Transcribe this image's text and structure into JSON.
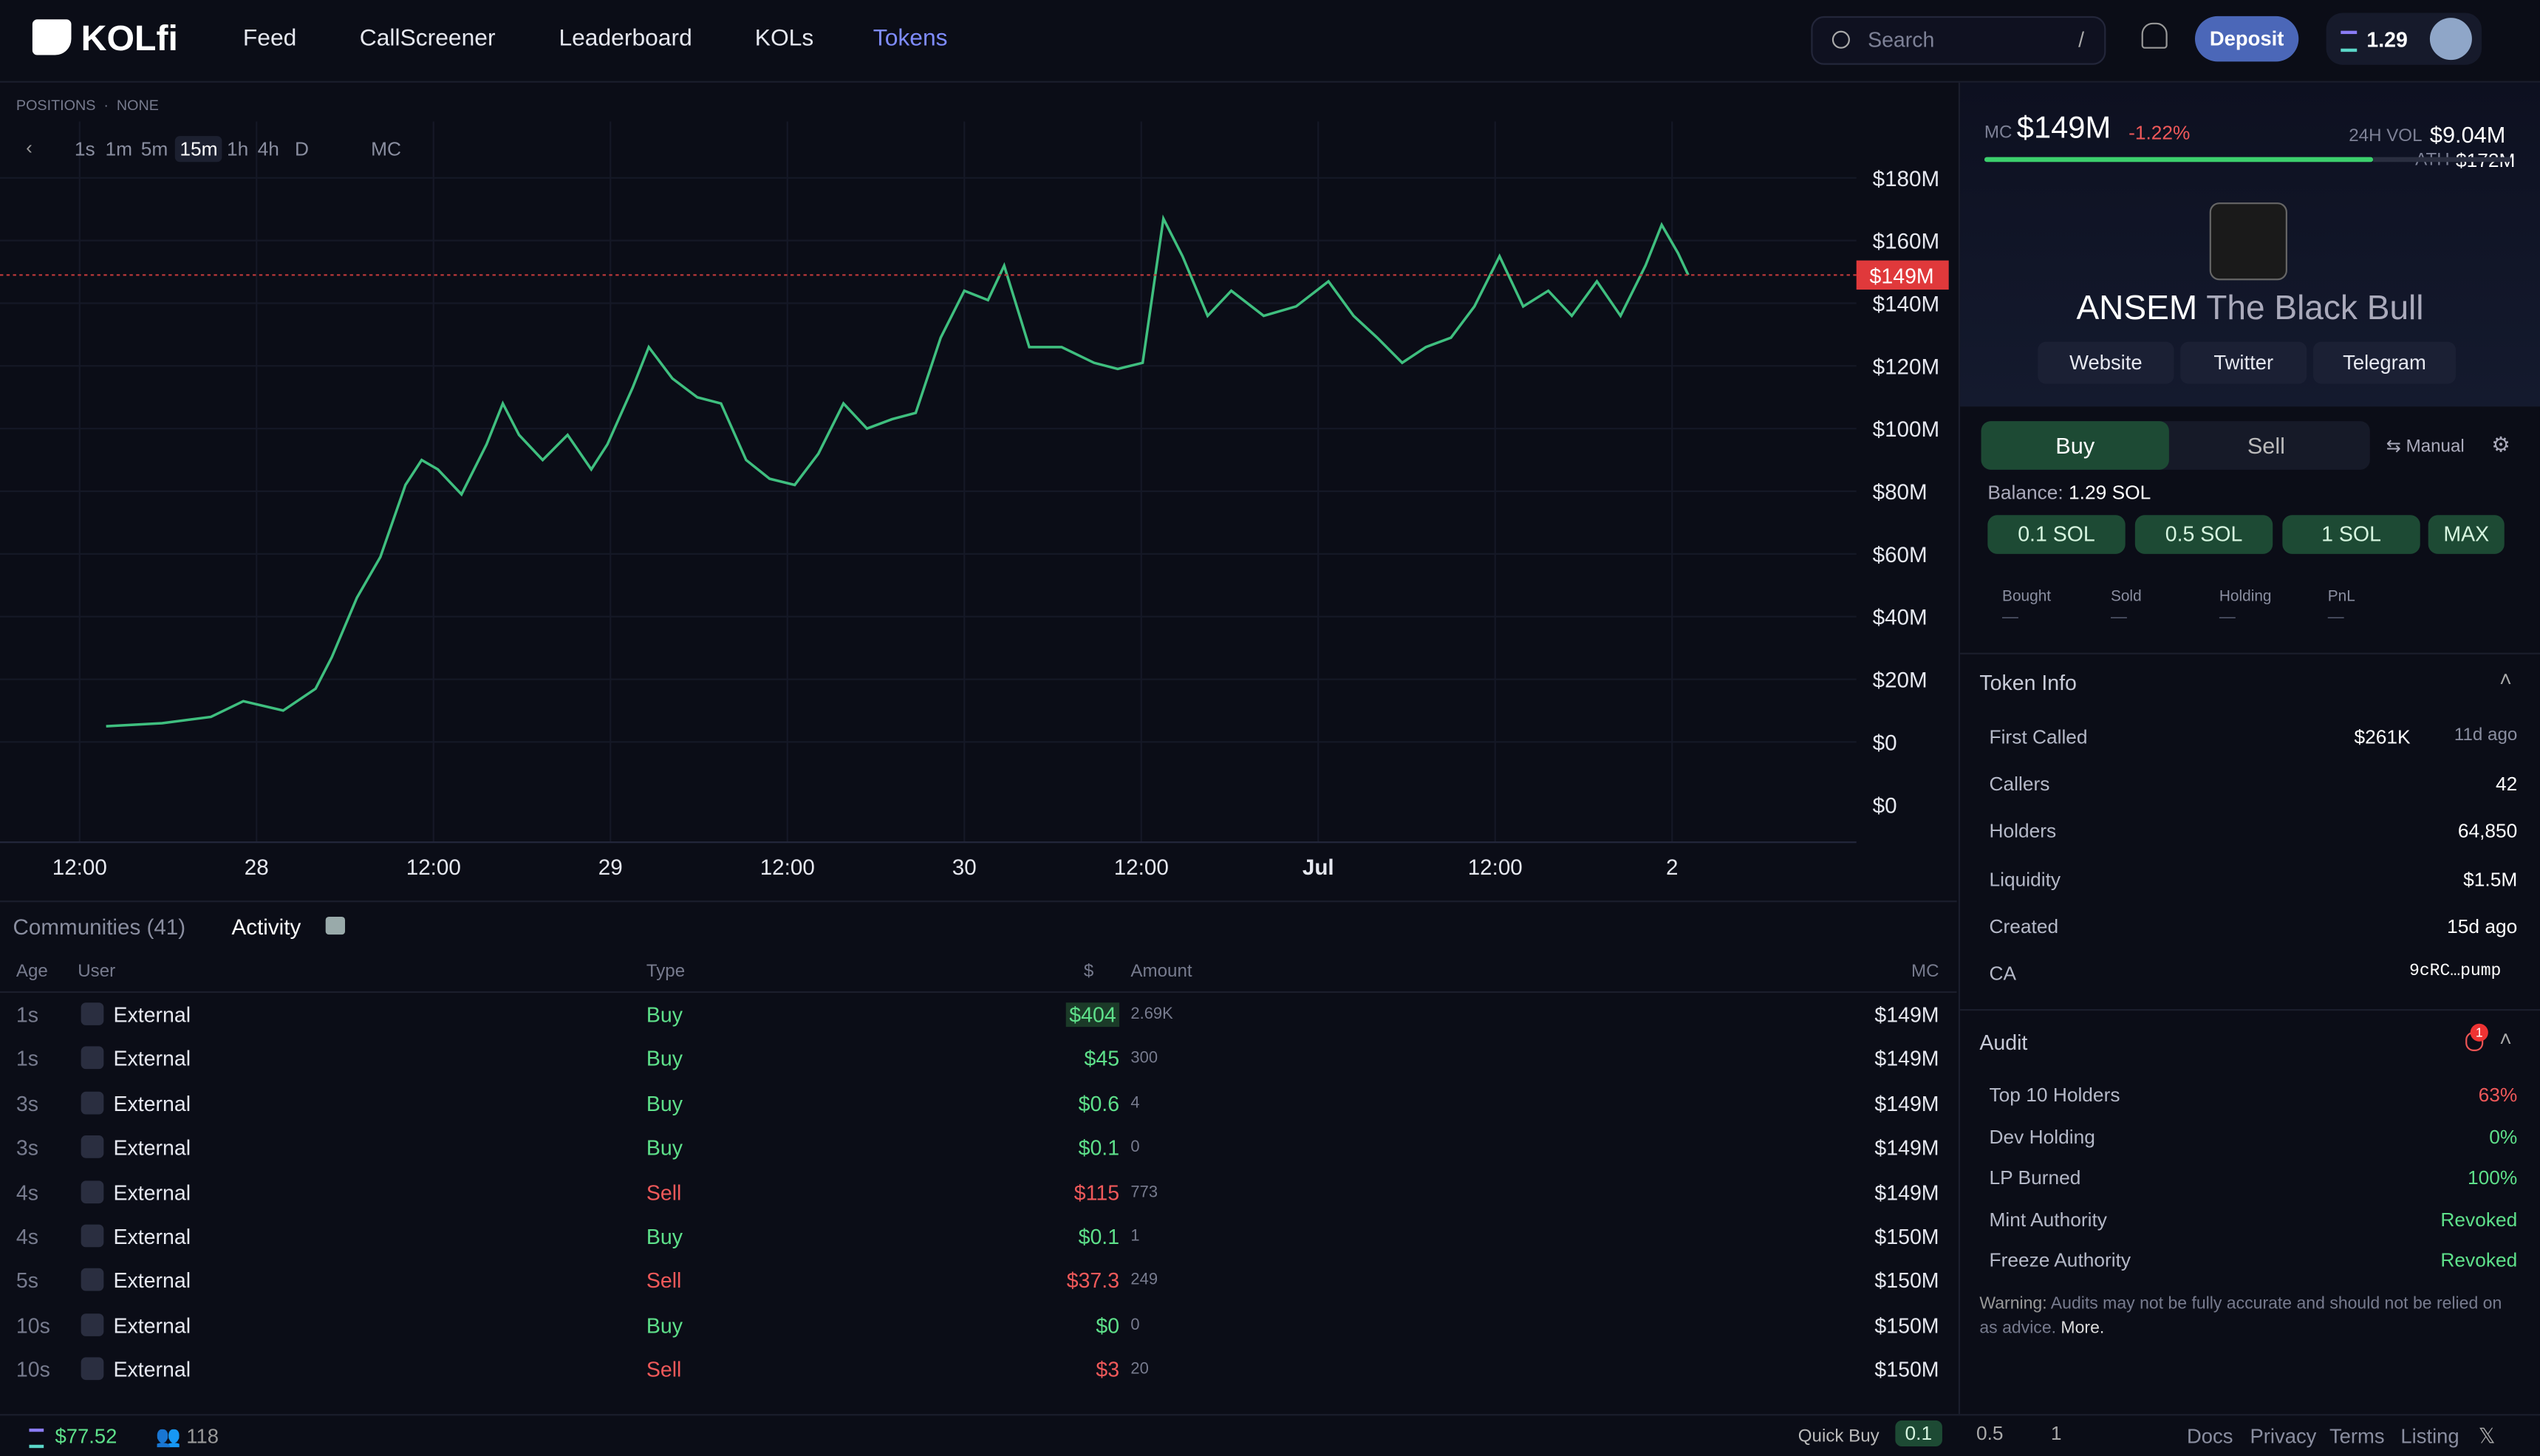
{
  "nav": {
    "logo": "KOLfi",
    "links": [
      "Feed",
      "CallScreener",
      "Leaderboard",
      "KOLs",
      "Tokens"
    ],
    "search": "Search",
    "search_key": "/",
    "deposit": "Deposit",
    "balance": "1.29"
  },
  "chart_toolbar": {
    "positions": "POSITIONS",
    "positions_value": "NONE",
    "intervals": [
      "1s",
      "1m",
      "5m",
      "15m",
      "1h",
      "4h",
      "D"
    ],
    "mc": "MC"
  },
  "chart_data": {
    "type": "line",
    "color": "#3fbf7f",
    "x": [
      1.8,
      5.6,
      8.9,
      11.1,
      13.8,
      16.0,
      17.1,
      18.8,
      20.4,
      22.1,
      23.2,
      24.3,
      25.9,
      27.6,
      28.7,
      29.8,
      31.4,
      33.1,
      34.7,
      35.8,
      37.5,
      38.6,
      40.2,
      41.9,
      43.5,
      45.2,
      46.8,
      48.5,
      50.1,
      51.8,
      53.4,
      55.1,
      56.7,
      58.4,
      60.0,
      61.6,
      62.7,
      64.4,
      66.6,
      68.8,
      70.4,
      72.1,
      73.5,
      74.8,
      76.5,
      78.1,
      80.3,
      82.5,
      84.7,
      86.4,
      88.0,
      89.7,
      91.3,
      93.0,
      94.6,
      96.3,
      97.9,
      99.6,
      101.2,
      102.9,
      104.5,
      106.2,
      107.3,
      108.4,
      109.1
    ],
    "values": [
      5,
      6,
      8,
      13,
      10,
      17,
      27,
      46,
      59,
      82,
      90,
      87,
      79,
      95,
      108,
      98,
      90,
      98,
      87,
      95,
      113,
      126,
      116,
      110,
      108,
      90,
      84,
      82,
      92,
      108,
      100,
      103,
      105,
      129,
      144,
      141,
      152,
      126,
      126,
      121,
      119,
      121,
      167,
      155,
      136,
      144,
      136,
      139,
      147,
      136,
      129,
      121,
      126,
      129,
      139,
      155,
      139,
      144,
      136,
      147,
      136,
      152,
      165,
      156,
      149
    ],
    "xlim": [
      -5.4,
      120.5
    ],
    "ylim": [
      -32,
      198
    ],
    "xticks": [
      {
        "value": 0,
        "label": "12:00"
      },
      {
        "value": 12,
        "label": "28"
      },
      {
        "value": 24,
        "label": "12:00"
      },
      {
        "value": 36,
        "label": "29"
      },
      {
        "value": 48,
        "label": "12:00"
      },
      {
        "value": 60,
        "label": "30"
      },
      {
        "value": 72,
        "label": "12:00"
      },
      {
        "value": 84,
        "label": "Jul"
      },
      {
        "value": 96,
        "label": "12:00"
      },
      {
        "value": 108,
        "label": "2"
      }
    ],
    "yticks": [
      {
        "value": 180,
        "label": "$180M"
      },
      {
        "value": 160,
        "label": "$160M"
      },
      {
        "value": 140,
        "label": "$140M"
      },
      {
        "value": 120,
        "label": "$120M"
      },
      {
        "value": 100,
        "label": "$100M"
      },
      {
        "value": 80,
        "label": "$80M"
      },
      {
        "value": 60,
        "label": "$60M"
      },
      {
        "value": 40,
        "label": "$40M"
      },
      {
        "value": 20,
        "label": "$20M"
      },
      {
        "value": 0,
        "label": "$0"
      }
    ],
    "volume_yticks": [
      {
        "value": 0,
        "label": "$0"
      }
    ],
    "current_price": {
      "value": 149,
      "label": "$149M"
    },
    "grid": true
  },
  "activity": {
    "tabs": [
      "Communities (41)",
      "Activity"
    ],
    "columns": [
      "Age",
      "User",
      "Type",
      "$",
      "Amount",
      "MC"
    ],
    "rows": [
      [
        "1s",
        "External",
        "Buy",
        "$404",
        "2.69K",
        "$149M"
      ],
      [
        "1s",
        "External",
        "Buy",
        "$45",
        "300",
        "$149M"
      ],
      [
        "3s",
        "External",
        "Buy",
        "$0.6",
        "4",
        "$149M"
      ],
      [
        "3s",
        "External",
        "Buy",
        "$0.1",
        "0",
        "$149M"
      ],
      [
        "4s",
        "External",
        "Sell",
        "$115",
        "773",
        "$149M"
      ],
      [
        "4s",
        "External",
        "Buy",
        "$0.1",
        "1",
        "$150M"
      ],
      [
        "5s",
        "External",
        "Sell",
        "$37.3",
        "249",
        "$150M"
      ],
      [
        "10s",
        "External",
        "Buy",
        "$0",
        "0",
        "$150M"
      ],
      [
        "10s",
        "External",
        "Sell",
        "$3",
        "20",
        "$150M"
      ]
    ]
  },
  "token": {
    "mc_label": "MC",
    "mc": "$149M",
    "change": "-1.22%",
    "vol_label": "24H VOL",
    "vol": "$9.04M",
    "ath_label": "ATH",
    "ath": "$172M",
    "ticker": "ANSEM",
    "name": "The Black Bull",
    "links": [
      "Website",
      "Twitter",
      "Telegram"
    ]
  },
  "trade": {
    "tabs": [
      "Buy",
      "Sell"
    ],
    "mode": "Manual",
    "balance_label": "Balance:",
    "balance": "1.29 SOL",
    "amounts": [
      "0.1 SOL",
      "0.5 SOL",
      "1 SOL",
      "MAX"
    ],
    "stats": [
      "Bought",
      "Sold",
      "Holding",
      "PnL"
    ],
    "stat_values": [
      "—",
      "—",
      "—",
      "—"
    ]
  },
  "token_info": {
    "title": "Token Info",
    "rows": [
      [
        "First Called",
        "$261K",
        "11d ago"
      ],
      [
        "Callers",
        "42"
      ],
      [
        "Holders",
        "64,850"
      ],
      [
        "Liquidity",
        "$1.5M"
      ],
      [
        "Created",
        "15d ago"
      ],
      [
        "CA",
        "9cRC…pump"
      ]
    ]
  },
  "audit": {
    "title": "Audit",
    "badge": "1",
    "rows": [
      [
        "Top 10 Holders",
        "63%"
      ],
      [
        "Dev Holding",
        "0%"
      ],
      [
        "LP Burned",
        "100%"
      ],
      [
        "Mint Authority",
        "Revoked"
      ],
      [
        "Freeze Authority",
        "Revoked"
      ]
    ],
    "warning_label": "Warning:",
    "warning": "Audits may not be fully accurate and should not be relied on as advice.",
    "more": "More."
  },
  "footer": {
    "wallet": "$77.52",
    "users": "118",
    "quick_buy": "Quick Buy",
    "quick_amounts": [
      "0.1",
      "0.5",
      "1"
    ],
    "links": [
      "Docs",
      "Privacy",
      "Terms",
      "Listing"
    ]
  }
}
